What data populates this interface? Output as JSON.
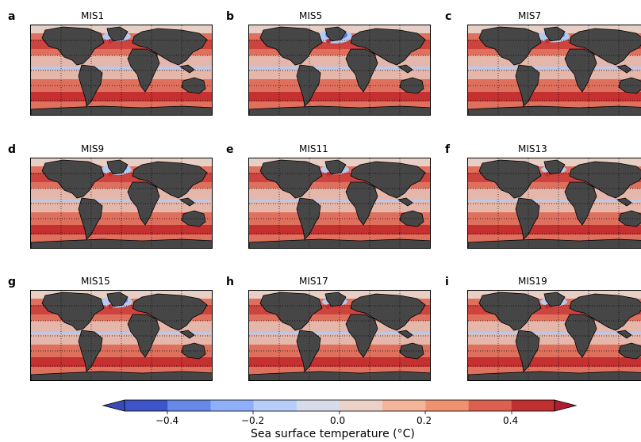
{
  "panels": [
    {
      "letter": "a",
      "title": "MIS1"
    },
    {
      "letter": "b",
      "title": "MIS5"
    },
    {
      "letter": "c",
      "title": "MIS7"
    },
    {
      "letter": "d",
      "title": "MIS9"
    },
    {
      "letter": "e",
      "title": "MIS11"
    },
    {
      "letter": "f",
      "title": "MIS13"
    },
    {
      "letter": "g",
      "title": "MIS15"
    },
    {
      "letter": "h",
      "title": "MIS17"
    },
    {
      "letter": "i",
      "title": "MIS19"
    }
  ],
  "colorbar": {
    "title": "Sea surface temperature (°C)",
    "ticks": [
      "−0.4",
      "−0.2",
      "0.0",
      "0.2",
      "0.4"
    ],
    "colors": [
      "#3d55c8",
      "#6688e8",
      "#8fb0f8",
      "#b7cdfa",
      "#d7dce8",
      "#ecd2c6",
      "#f4b59a",
      "#ef9272",
      "#dc6050",
      "#c03030"
    ],
    "extend_low": "#3a4bb8",
    "extend_high": "#b01c30"
  },
  "colors": {
    "land": "#464646",
    "ocean_warm": "#e0705e",
    "ocean_hot": "#c53030",
    "ocean_neutral": "#e7cfc6",
    "ocean_cool": "#b8c9ee",
    "ocean_cold": "#5678d8"
  }
}
